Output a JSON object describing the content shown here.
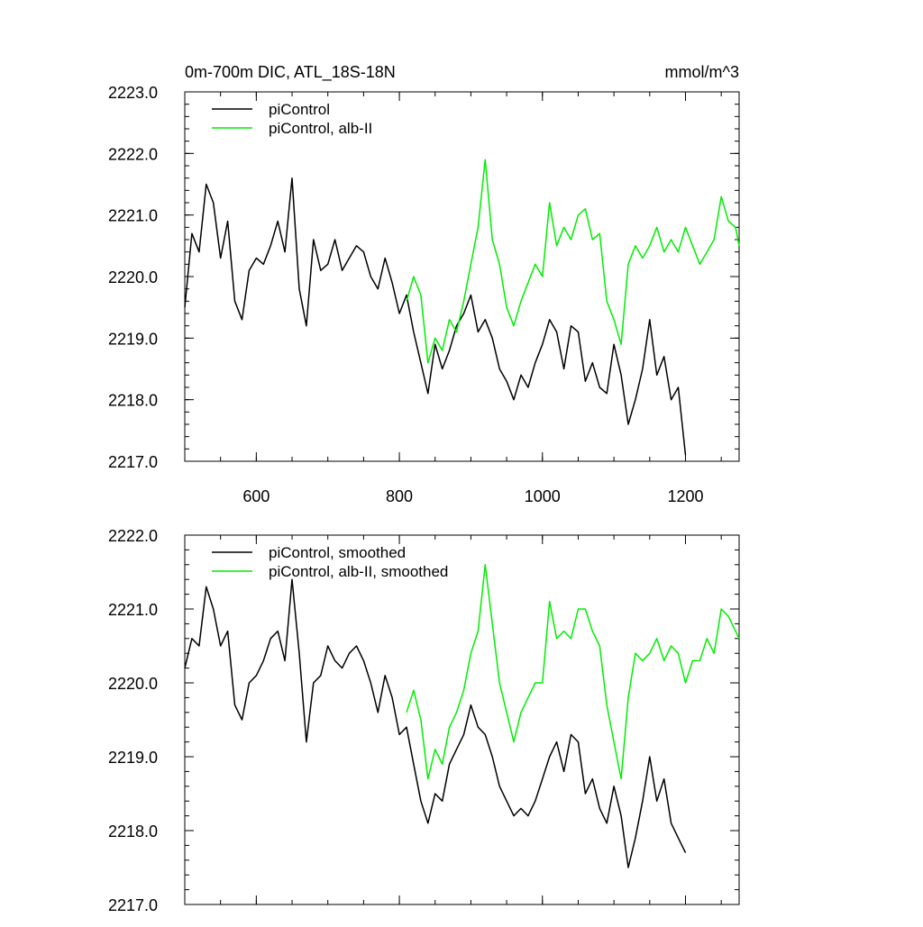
{
  "chart_data": [
    {
      "type": "line",
      "title": "0m-700m DIC, ATL_18S-18N",
      "units": "mmol/m^3",
      "xlim": [
        500,
        1275
      ],
      "ylim": [
        2217.0,
        2223.0
      ],
      "xticks": [
        600,
        800,
        1000,
        1200
      ],
      "yticks": [
        2217.0,
        2218.0,
        2219.0,
        2220.0,
        2221.0,
        2222.0,
        2223.0
      ],
      "ytick_labels": [
        "2217.0",
        "2218.0",
        "2219.0",
        "2220.0",
        "2221.0",
        "2222.0",
        "2223.0"
      ],
      "xtick_labels": [
        "600",
        "800",
        "1000",
        "1200"
      ],
      "legend_position": "top-left",
      "series": [
        {
          "name": "piControl",
          "color": "#000000",
          "x": [
            500,
            510,
            520,
            530,
            540,
            550,
            560,
            570,
            580,
            590,
            600,
            610,
            620,
            630,
            640,
            650,
            660,
            670,
            680,
            690,
            700,
            710,
            720,
            730,
            740,
            750,
            760,
            770,
            780,
            790,
            800,
            810,
            820,
            830,
            840,
            850,
            860,
            870,
            880,
            890,
            900,
            910,
            920,
            930,
            940,
            950,
            960,
            970,
            980,
            990,
            1000,
            1010,
            1020,
            1030,
            1040,
            1050,
            1060,
            1070,
            1080,
            1090,
            1100,
            1110,
            1120,
            1130,
            1140,
            1150,
            1160,
            1170,
            1180,
            1190,
            1200
          ],
          "y": [
            2219.5,
            2220.7,
            2220.4,
            2221.5,
            2221.2,
            2220.3,
            2220.9,
            2219.6,
            2219.3,
            2220.1,
            2220.3,
            2220.2,
            2220.5,
            2220.9,
            2220.4,
            2221.6,
            2219.8,
            2219.2,
            2220.6,
            2220.1,
            2220.2,
            2220.6,
            2220.1,
            2220.3,
            2220.5,
            2220.4,
            2220.0,
            2219.8,
            2220.3,
            2219.9,
            2219.4,
            2219.7,
            2219.1,
            2218.6,
            2218.1,
            2218.9,
            2218.5,
            2218.8,
            2219.2,
            2219.4,
            2219.7,
            2219.1,
            2219.3,
            2219.0,
            2218.5,
            2218.3,
            2218.0,
            2218.4,
            2218.2,
            2218.6,
            2218.9,
            2219.3,
            2219.1,
            2218.5,
            2219.2,
            2219.1,
            2218.3,
            2218.6,
            2218.2,
            2218.1,
            2218.9,
            2218.4,
            2217.6,
            2218.0,
            2218.5,
            2219.3,
            2218.4,
            2218.7,
            2218.0,
            2218.2,
            2217.1
          ]
        },
        {
          "name": "piControl, alb-II",
          "color": "#00ee00",
          "x": [
            810,
            820,
            830,
            840,
            850,
            860,
            870,
            880,
            890,
            900,
            910,
            920,
            930,
            940,
            950,
            960,
            970,
            980,
            990,
            1000,
            1010,
            1020,
            1030,
            1040,
            1050,
            1060,
            1070,
            1080,
            1090,
            1100,
            1110,
            1120,
            1130,
            1140,
            1150,
            1160,
            1170,
            1180,
            1190,
            1200,
            1210,
            1220,
            1230,
            1240,
            1250,
            1260,
            1270,
            1275
          ],
          "y": [
            2219.6,
            2220.0,
            2219.7,
            2218.6,
            2219.0,
            2218.8,
            2219.3,
            2219.1,
            2219.6,
            2220.2,
            2220.8,
            2221.9,
            2220.6,
            2220.2,
            2219.5,
            2219.2,
            2219.6,
            2219.9,
            2220.2,
            2220.0,
            2221.2,
            2220.5,
            2220.8,
            2220.6,
            2221.0,
            2221.1,
            2220.6,
            2220.7,
            2219.6,
            2219.3,
            2218.9,
            2220.2,
            2220.5,
            2220.3,
            2220.5,
            2220.8,
            2220.4,
            2220.6,
            2220.4,
            2220.8,
            2220.5,
            2220.2,
            2220.4,
            2220.6,
            2221.3,
            2220.9,
            2220.8,
            2220.5
          ]
        }
      ]
    },
    {
      "type": "line",
      "xlim": [
        500,
        1275
      ],
      "ylim": [
        2217.0,
        2222.0
      ],
      "xticks": [
        600,
        800,
        1000,
        1200
      ],
      "yticks": [
        2217.0,
        2218.0,
        2219.0,
        2220.0,
        2221.0,
        2222.0
      ],
      "ytick_labels": [
        "2217.0",
        "2218.0",
        "2219.0",
        "2220.0",
        "2221.0",
        "2222.0"
      ],
      "legend_position": "top-left",
      "series": [
        {
          "name": "piControl, smoothed",
          "color": "#000000",
          "x": [
            500,
            510,
            520,
            530,
            540,
            550,
            560,
            570,
            580,
            590,
            600,
            610,
            620,
            630,
            640,
            650,
            660,
            670,
            680,
            690,
            700,
            710,
            720,
            730,
            740,
            750,
            760,
            770,
            780,
            790,
            800,
            810,
            820,
            830,
            840,
            850,
            860,
            870,
            880,
            890,
            900,
            910,
            920,
            930,
            940,
            950,
            960,
            970,
            980,
            990,
            1000,
            1010,
            1020,
            1030,
            1040,
            1050,
            1060,
            1070,
            1080,
            1090,
            1100,
            1110,
            1120,
            1130,
            1140,
            1150,
            1160,
            1170,
            1180,
            1190,
            1200
          ],
          "y": [
            2220.2,
            2220.6,
            2220.5,
            2221.3,
            2221.0,
            2220.5,
            2220.7,
            2219.7,
            2219.5,
            2220.0,
            2220.1,
            2220.3,
            2220.6,
            2220.7,
            2220.3,
            2221.4,
            2220.4,
            2219.2,
            2220.0,
            2220.1,
            2220.5,
            2220.3,
            2220.2,
            2220.4,
            2220.5,
            2220.3,
            2220.0,
            2219.6,
            2220.1,
            2219.8,
            2219.3,
            2219.4,
            2218.9,
            2218.4,
            2218.1,
            2218.5,
            2218.4,
            2218.9,
            2219.1,
            2219.3,
            2219.7,
            2219.4,
            2219.3,
            2219.0,
            2218.6,
            2218.4,
            2218.2,
            2218.3,
            2218.2,
            2218.4,
            2218.7,
            2219.0,
            2219.2,
            2218.8,
            2219.3,
            2219.2,
            2218.5,
            2218.7,
            2218.3,
            2218.1,
            2218.6,
            2218.2,
            2217.5,
            2217.9,
            2218.4,
            2219.0,
            2218.4,
            2218.7,
            2218.1,
            2217.9,
            2217.7
          ]
        },
        {
          "name": "piControl, alb-II, smoothed",
          "color": "#00ee00",
          "x": [
            810,
            820,
            830,
            840,
            850,
            860,
            870,
            880,
            890,
            900,
            910,
            920,
            930,
            940,
            950,
            960,
            970,
            980,
            990,
            1000,
            1010,
            1020,
            1030,
            1040,
            1050,
            1060,
            1070,
            1080,
            1090,
            1100,
            1110,
            1120,
            1130,
            1140,
            1150,
            1160,
            1170,
            1180,
            1190,
            1200,
            1210,
            1220,
            1230,
            1240,
            1250,
            1260,
            1270,
            1275
          ],
          "y": [
            2219.6,
            2219.9,
            2219.5,
            2218.7,
            2219.1,
            2218.9,
            2219.4,
            2219.6,
            2219.9,
            2220.4,
            2220.7,
            2221.6,
            2220.8,
            2220.0,
            2219.6,
            2219.2,
            2219.6,
            2219.8,
            2220.0,
            2220.0,
            2221.1,
            2220.6,
            2220.7,
            2220.6,
            2221.0,
            2221.0,
            2220.7,
            2220.5,
            2219.7,
            2219.2,
            2218.7,
            2219.8,
            2220.4,
            2220.3,
            2220.4,
            2220.6,
            2220.3,
            2220.5,
            2220.4,
            2220.0,
            2220.3,
            2220.3,
            2220.6,
            2220.4,
            2221.0,
            2220.9,
            2220.7,
            2220.6
          ]
        }
      ]
    }
  ]
}
